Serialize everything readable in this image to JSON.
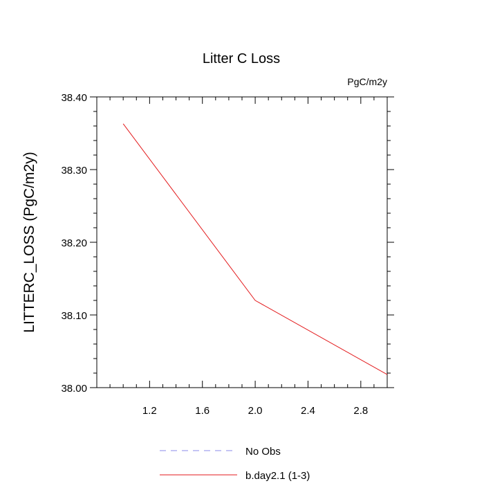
{
  "chart_data": {
    "type": "line",
    "title": "Litter C Loss",
    "units_label": "PgC/m2y",
    "xlabel": "",
    "ylabel": "LITTERC_LOSS  (PgC/m2y)",
    "xlim": [
      0.8,
      3.0
    ],
    "ylim": [
      38.0,
      38.4
    ],
    "x_ticks": [
      1.2,
      1.6,
      2.0,
      2.4,
      2.8
    ],
    "x_tick_labels": [
      "1.2",
      "1.6",
      "2.0",
      "2.4",
      "2.8"
    ],
    "y_ticks": [
      38.0,
      38.1,
      38.2,
      38.3,
      38.4
    ],
    "y_tick_labels": [
      "38.00",
      "38.10",
      "38.20",
      "38.30",
      "38.40"
    ],
    "grid": false,
    "legend_position": "bottom",
    "series": [
      {
        "name": "No Obs",
        "x": [],
        "y": [],
        "color": "#8a8aea",
        "dash": true
      },
      {
        "name": "b.day2.1 (1-3)",
        "x": [
          1.0,
          2.0,
          3.0
        ],
        "y": [
          38.363,
          38.12,
          38.018
        ],
        "color": "#e31a1c",
        "dash": false
      }
    ]
  }
}
